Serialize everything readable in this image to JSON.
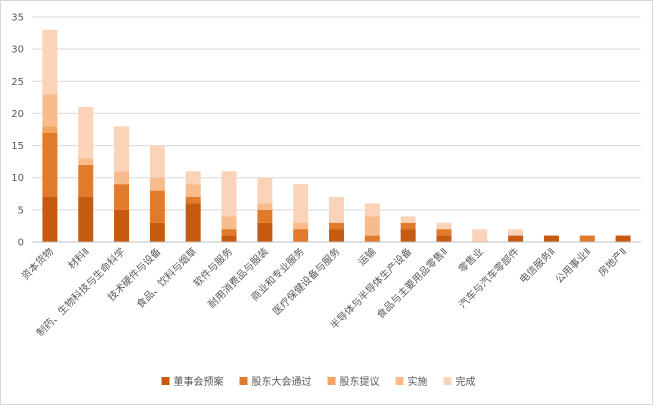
{
  "chart_data": {
    "type": "bar",
    "stacked": true,
    "categories": [
      "资本货物",
      "材料Ⅱ",
      "制药、生物科技与生命科学",
      "技术硬件与设备",
      "食品、饮料与烟草",
      "软件与服务",
      "耐用消费品与服装",
      "商业和专业服务",
      "医疗保健设备与服务",
      "运输",
      "半导体与半导体生产设备",
      "食品与主要用品零售Ⅱ",
      "零售业",
      "汽车与汽车零部件",
      "电信服务Ⅱ",
      "公用事业Ⅱ",
      "房地产Ⅱ"
    ],
    "series": [
      {
        "name": "董事会预案",
        "color": "#c55a11",
        "values": [
          7,
          7,
          5,
          3,
          6,
          1,
          3,
          0,
          2,
          0,
          2,
          1,
          0,
          1,
          1,
          0,
          1
        ]
      },
      {
        "name": "股东大会通过",
        "color": "#e07b2c",
        "values": [
          10,
          5,
          4,
          5,
          1,
          1,
          2,
          2,
          1,
          1,
          1,
          1,
          0,
          0,
          0,
          1,
          0
        ]
      },
      {
        "name": "股东提议",
        "color": "#f4a460",
        "values": [
          1,
          0,
          0,
          0,
          0,
          0,
          0,
          0,
          0,
          0,
          0,
          0,
          0,
          0,
          0,
          0,
          0
        ]
      },
      {
        "name": "实施",
        "color": "#f7bb8c",
        "values": [
          5,
          1,
          2,
          2,
          2,
          2,
          1,
          1,
          0,
          3,
          0,
          0,
          0,
          0,
          0,
          0,
          0
        ]
      },
      {
        "name": "完成",
        "color": "#fbd3b8",
        "values": [
          10,
          8,
          7,
          5,
          2,
          7,
          4,
          6,
          4,
          2,
          1,
          1,
          2,
          1,
          0,
          0,
          0
        ]
      }
    ],
    "y_ticks": [
      "0",
      "5",
      "10",
      "15",
      "20",
      "25",
      "30",
      "35"
    ],
    "ylim": [
      0,
      35
    ],
    "grid": true,
    "legend_position": "bottom"
  }
}
